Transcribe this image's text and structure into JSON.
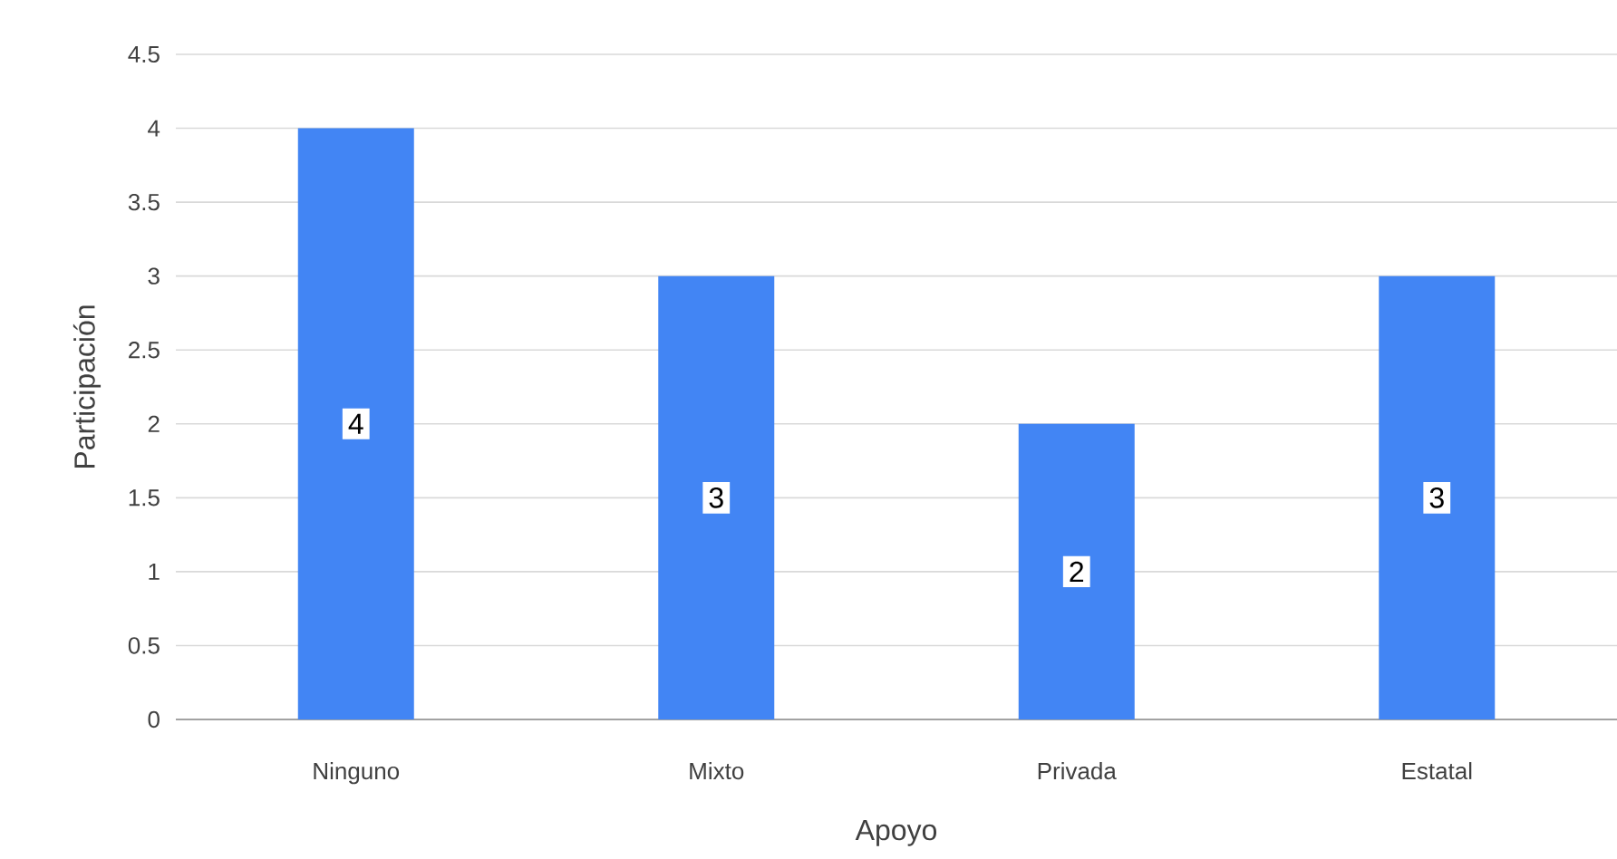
{
  "chart_data": {
    "type": "bar",
    "xlabel": "Apoyo",
    "ylabel": "Participación",
    "categories": [
      "Ninguno",
      "Mixto",
      "Privada",
      "Estatal"
    ],
    "values": [
      4,
      3,
      2,
      3
    ],
    "value_labels": [
      "4",
      "3",
      "2",
      "3"
    ],
    "color": "#4285f4",
    "ylim": [
      0,
      4.5
    ],
    "yticks": [
      0,
      0.5,
      1,
      1.5,
      2,
      2.5,
      3,
      3.5,
      4,
      4.5
    ],
    "grid": "y"
  }
}
